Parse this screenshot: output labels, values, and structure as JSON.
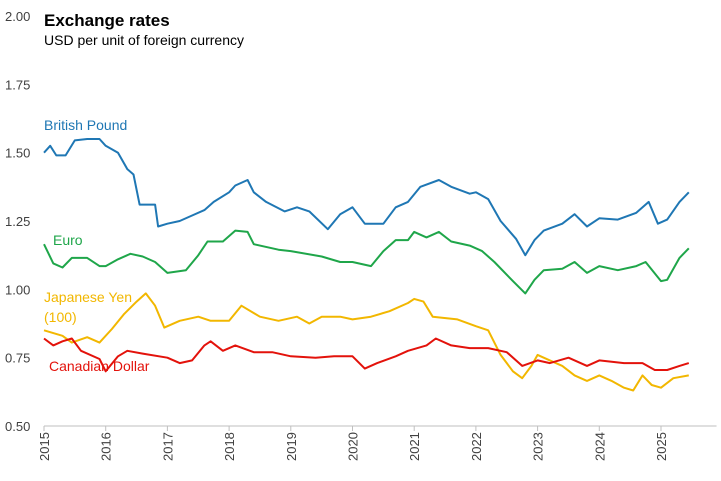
{
  "chart_data": {
    "type": "line",
    "title": "Exchange rates",
    "subtitle": "USD per unit of foreign currency",
    "xlabel": "",
    "ylabel": "",
    "xlim": [
      2015,
      2025.9
    ],
    "ylim": [
      0.5,
      2.0
    ],
    "yticks": [
      "0.50",
      "0.75",
      "1.00",
      "1.25",
      "1.50",
      "1.75",
      "2.00"
    ],
    "xticks": [
      "2015",
      "2016",
      "2017",
      "2018",
      "2019",
      "2020",
      "2021",
      "2022",
      "2023",
      "2024",
      "2025"
    ],
    "grid": false,
    "legend": "inline labels",
    "series": [
      {
        "name": "British Pound",
        "label_lines": [
          "British Pound"
        ],
        "color": "#1f77b4",
        "x": [
          2015.0,
          2015.1,
          2015.2,
          2015.35,
          2015.5,
          2015.7,
          2015.9,
          2016.0,
          2016.2,
          2016.35,
          2016.45,
          2016.55,
          2016.8,
          2016.85,
          2017.0,
          2017.2,
          2017.4,
          2017.6,
          2017.75,
          2018.0,
          2018.1,
          2018.3,
          2018.4,
          2018.6,
          2018.9,
          2019.1,
          2019.3,
          2019.6,
          2019.8,
          2020.0,
          2020.2,
          2020.5,
          2020.7,
          2020.9,
          2021.1,
          2021.4,
          2021.6,
          2021.9,
          2022.0,
          2022.2,
          2022.4,
          2022.65,
          2022.8,
          2022.95,
          2023.1,
          2023.4,
          2023.6,
          2023.8,
          2024.0,
          2024.3,
          2024.6,
          2024.8,
          2024.95,
          2025.1,
          2025.3,
          2025.45
        ],
        "y": [
          1.5,
          1.525,
          1.49,
          1.49,
          1.545,
          1.55,
          1.55,
          1.525,
          1.5,
          1.44,
          1.42,
          1.31,
          1.31,
          1.23,
          1.24,
          1.25,
          1.27,
          1.29,
          1.32,
          1.355,
          1.38,
          1.4,
          1.355,
          1.32,
          1.285,
          1.3,
          1.285,
          1.22,
          1.275,
          1.3,
          1.24,
          1.24,
          1.3,
          1.32,
          1.375,
          1.4,
          1.375,
          1.35,
          1.355,
          1.33,
          1.25,
          1.185,
          1.125,
          1.18,
          1.215,
          1.24,
          1.275,
          1.23,
          1.26,
          1.255,
          1.28,
          1.32,
          1.24,
          1.255,
          1.32,
          1.355
        ]
      },
      {
        "name": "Euro",
        "label_lines": [
          "Euro"
        ],
        "color": "#1fa64a",
        "x": [
          2015.0,
          2015.15,
          2015.3,
          2015.45,
          2015.7,
          2015.9,
          2016.0,
          2016.2,
          2016.4,
          2016.6,
          2016.8,
          2017.0,
          2017.3,
          2017.5,
          2017.65,
          2017.9,
          2018.1,
          2018.3,
          2018.4,
          2018.8,
          2019.0,
          2019.5,
          2019.8,
          2020.0,
          2020.3,
          2020.5,
          2020.7,
          2020.9,
          2021.0,
          2021.2,
          2021.4,
          2021.6,
          2021.9,
          2022.1,
          2022.3,
          2022.6,
          2022.8,
          2022.95,
          2023.1,
          2023.4,
          2023.6,
          2023.8,
          2024.0,
          2024.3,
          2024.6,
          2024.75,
          2025.0,
          2025.1,
          2025.3,
          2025.45
        ],
        "y": [
          1.165,
          1.095,
          1.08,
          1.115,
          1.115,
          1.085,
          1.085,
          1.11,
          1.13,
          1.12,
          1.1,
          1.06,
          1.07,
          1.125,
          1.175,
          1.175,
          1.215,
          1.21,
          1.165,
          1.145,
          1.14,
          1.12,
          1.1,
          1.1,
          1.085,
          1.14,
          1.18,
          1.18,
          1.21,
          1.19,
          1.21,
          1.175,
          1.16,
          1.14,
          1.1,
          1.03,
          0.985,
          1.035,
          1.07,
          1.075,
          1.1,
          1.06,
          1.085,
          1.07,
          1.085,
          1.1,
          1.03,
          1.035,
          1.115,
          1.15
        ]
      },
      {
        "name": "Japanese Yen (100)",
        "label_lines": [
          "Japanese Yen",
          "(100)"
        ],
        "color": "#f2b700",
        "x": [
          2015.0,
          2015.3,
          2015.45,
          2015.7,
          2015.9,
          2016.1,
          2016.3,
          2016.5,
          2016.65,
          2016.8,
          2016.95,
          2017.2,
          2017.5,
          2017.7,
          2018.0,
          2018.2,
          2018.5,
          2018.8,
          2019.1,
          2019.3,
          2019.5,
          2019.8,
          2020.0,
          2020.3,
          2020.6,
          2020.9,
          2021.0,
          2021.15,
          2021.3,
          2021.7,
          2022.0,
          2022.2,
          2022.4,
          2022.6,
          2022.75,
          2022.9,
          2023.0,
          2023.2,
          2023.4,
          2023.6,
          2023.8,
          2024.0,
          2024.2,
          2024.4,
          2024.55,
          2024.7,
          2024.85,
          2025.0,
          2025.2,
          2025.45
        ],
        "y": [
          0.85,
          0.83,
          0.805,
          0.825,
          0.805,
          0.855,
          0.91,
          0.955,
          0.985,
          0.94,
          0.86,
          0.885,
          0.9,
          0.885,
          0.885,
          0.94,
          0.9,
          0.885,
          0.9,
          0.875,
          0.9,
          0.9,
          0.89,
          0.9,
          0.92,
          0.95,
          0.965,
          0.955,
          0.9,
          0.89,
          0.865,
          0.85,
          0.76,
          0.7,
          0.675,
          0.72,
          0.76,
          0.74,
          0.72,
          0.685,
          0.665,
          0.685,
          0.665,
          0.64,
          0.63,
          0.685,
          0.65,
          0.64,
          0.675,
          0.685
        ]
      },
      {
        "name": "Canadian Dollar",
        "label_lines": [
          "Canadian Dollar"
        ],
        "color": "#e3120b",
        "x": [
          2015.0,
          2015.15,
          2015.3,
          2015.45,
          2015.6,
          2015.9,
          2016.0,
          2016.2,
          2016.35,
          2016.6,
          2017.0,
          2017.2,
          2017.4,
          2017.6,
          2017.7,
          2017.9,
          2018.1,
          2018.4,
          2018.7,
          2019.0,
          2019.4,
          2019.7,
          2020.0,
          2020.2,
          2020.4,
          2020.7,
          2020.9,
          2021.2,
          2021.35,
          2021.6,
          2021.9,
          2022.2,
          2022.5,
          2022.75,
          2023.0,
          2023.2,
          2023.5,
          2023.8,
          2024.0,
          2024.4,
          2024.7,
          2024.9,
          2025.1,
          2025.3,
          2025.45
        ],
        "y": [
          0.82,
          0.795,
          0.81,
          0.82,
          0.775,
          0.745,
          0.7,
          0.755,
          0.775,
          0.765,
          0.75,
          0.73,
          0.74,
          0.795,
          0.81,
          0.775,
          0.795,
          0.77,
          0.77,
          0.755,
          0.75,
          0.755,
          0.755,
          0.71,
          0.73,
          0.755,
          0.775,
          0.795,
          0.82,
          0.795,
          0.785,
          0.785,
          0.77,
          0.72,
          0.74,
          0.73,
          0.75,
          0.72,
          0.74,
          0.73,
          0.73,
          0.705,
          0.705,
          0.72,
          0.73
        ]
      }
    ]
  }
}
